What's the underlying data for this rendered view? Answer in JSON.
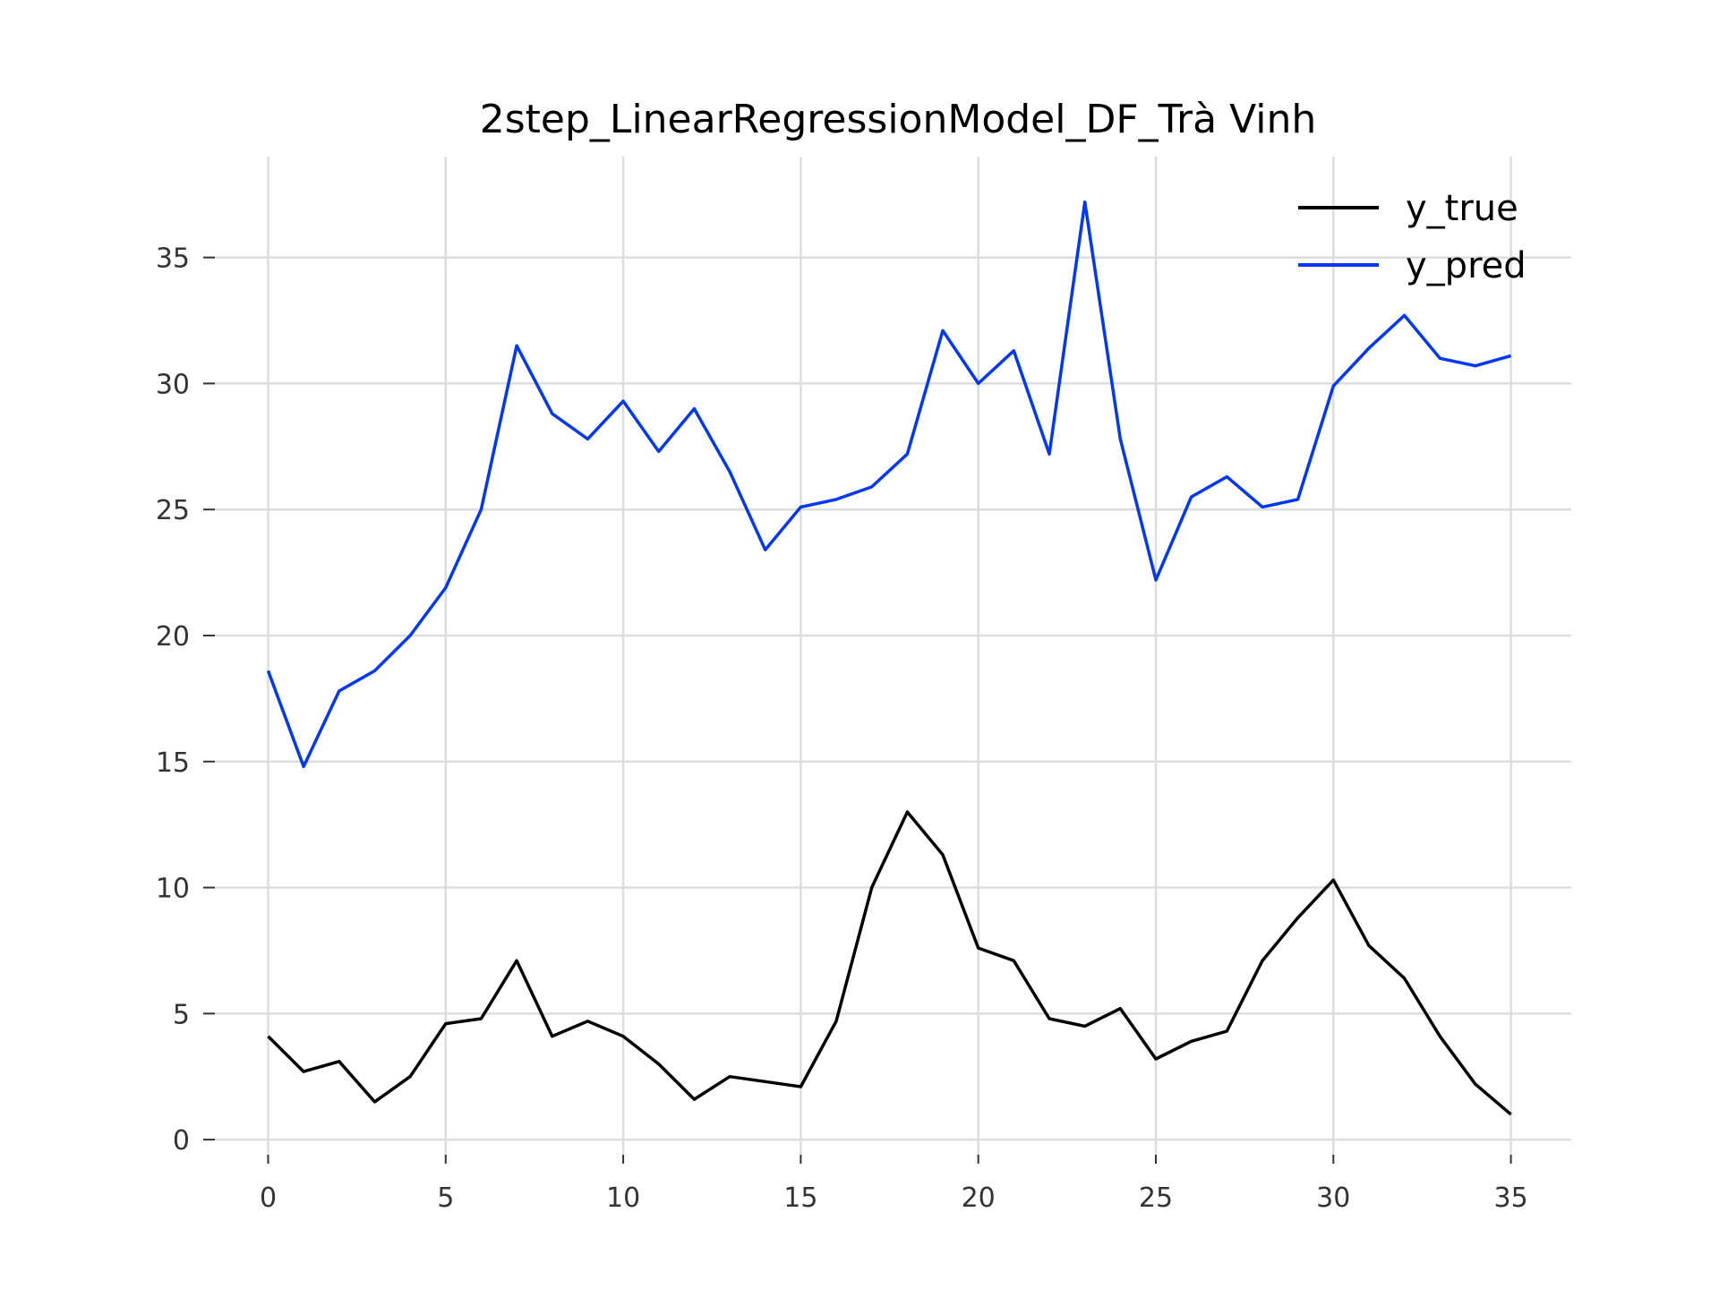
{
  "chart_data": {
    "type": "line",
    "title": "2step_LinearRegressionModel_DF_Trà Vinh",
    "xlabel": "",
    "ylabel": "",
    "x": [
      0,
      1,
      2,
      3,
      4,
      5,
      6,
      7,
      8,
      9,
      10,
      11,
      12,
      13,
      14,
      15,
      16,
      17,
      18,
      19,
      20,
      21,
      22,
      23,
      24,
      25,
      26,
      27,
      28,
      29,
      30,
      31,
      32,
      33,
      34,
      35
    ],
    "xlim": [
      -1.5,
      36.7
    ],
    "ylim": [
      -0.6,
      39
    ],
    "xticks": [
      0,
      5,
      10,
      15,
      20,
      25,
      30,
      35
    ],
    "yticks": [
      0,
      5,
      10,
      15,
      20,
      25,
      30,
      35
    ],
    "grid": true,
    "legend_position": "top-right",
    "series": [
      {
        "name": "y_true",
        "color": "#000000",
        "values": [
          4.1,
          2.7,
          3.1,
          1.5,
          2.5,
          4.6,
          4.8,
          7.1,
          4.1,
          4.7,
          4.1,
          3.0,
          1.6,
          2.5,
          2.3,
          2.1,
          4.7,
          10.0,
          13.0,
          11.3,
          7.6,
          7.1,
          4.8,
          4.5,
          5.2,
          3.2,
          3.9,
          4.3,
          7.1,
          8.8,
          10.3,
          7.7,
          6.4,
          4.1,
          2.2,
          1.0
        ]
      },
      {
        "name": "y_pred",
        "color": "#0037ff",
        "values": [
          18.6,
          14.8,
          17.8,
          18.6,
          20.0,
          21.9,
          25.0,
          31.5,
          28.8,
          27.8,
          29.3,
          27.3,
          29.0,
          26.5,
          23.4,
          25.1,
          25.4,
          25.9,
          27.2,
          32.1,
          30.0,
          31.3,
          27.2,
          37.2,
          27.8,
          22.2,
          25.5,
          26.3,
          25.1,
          25.4,
          29.9,
          31.4,
          32.7,
          31.0,
          30.7,
          31.1
        ]
      }
    ]
  }
}
